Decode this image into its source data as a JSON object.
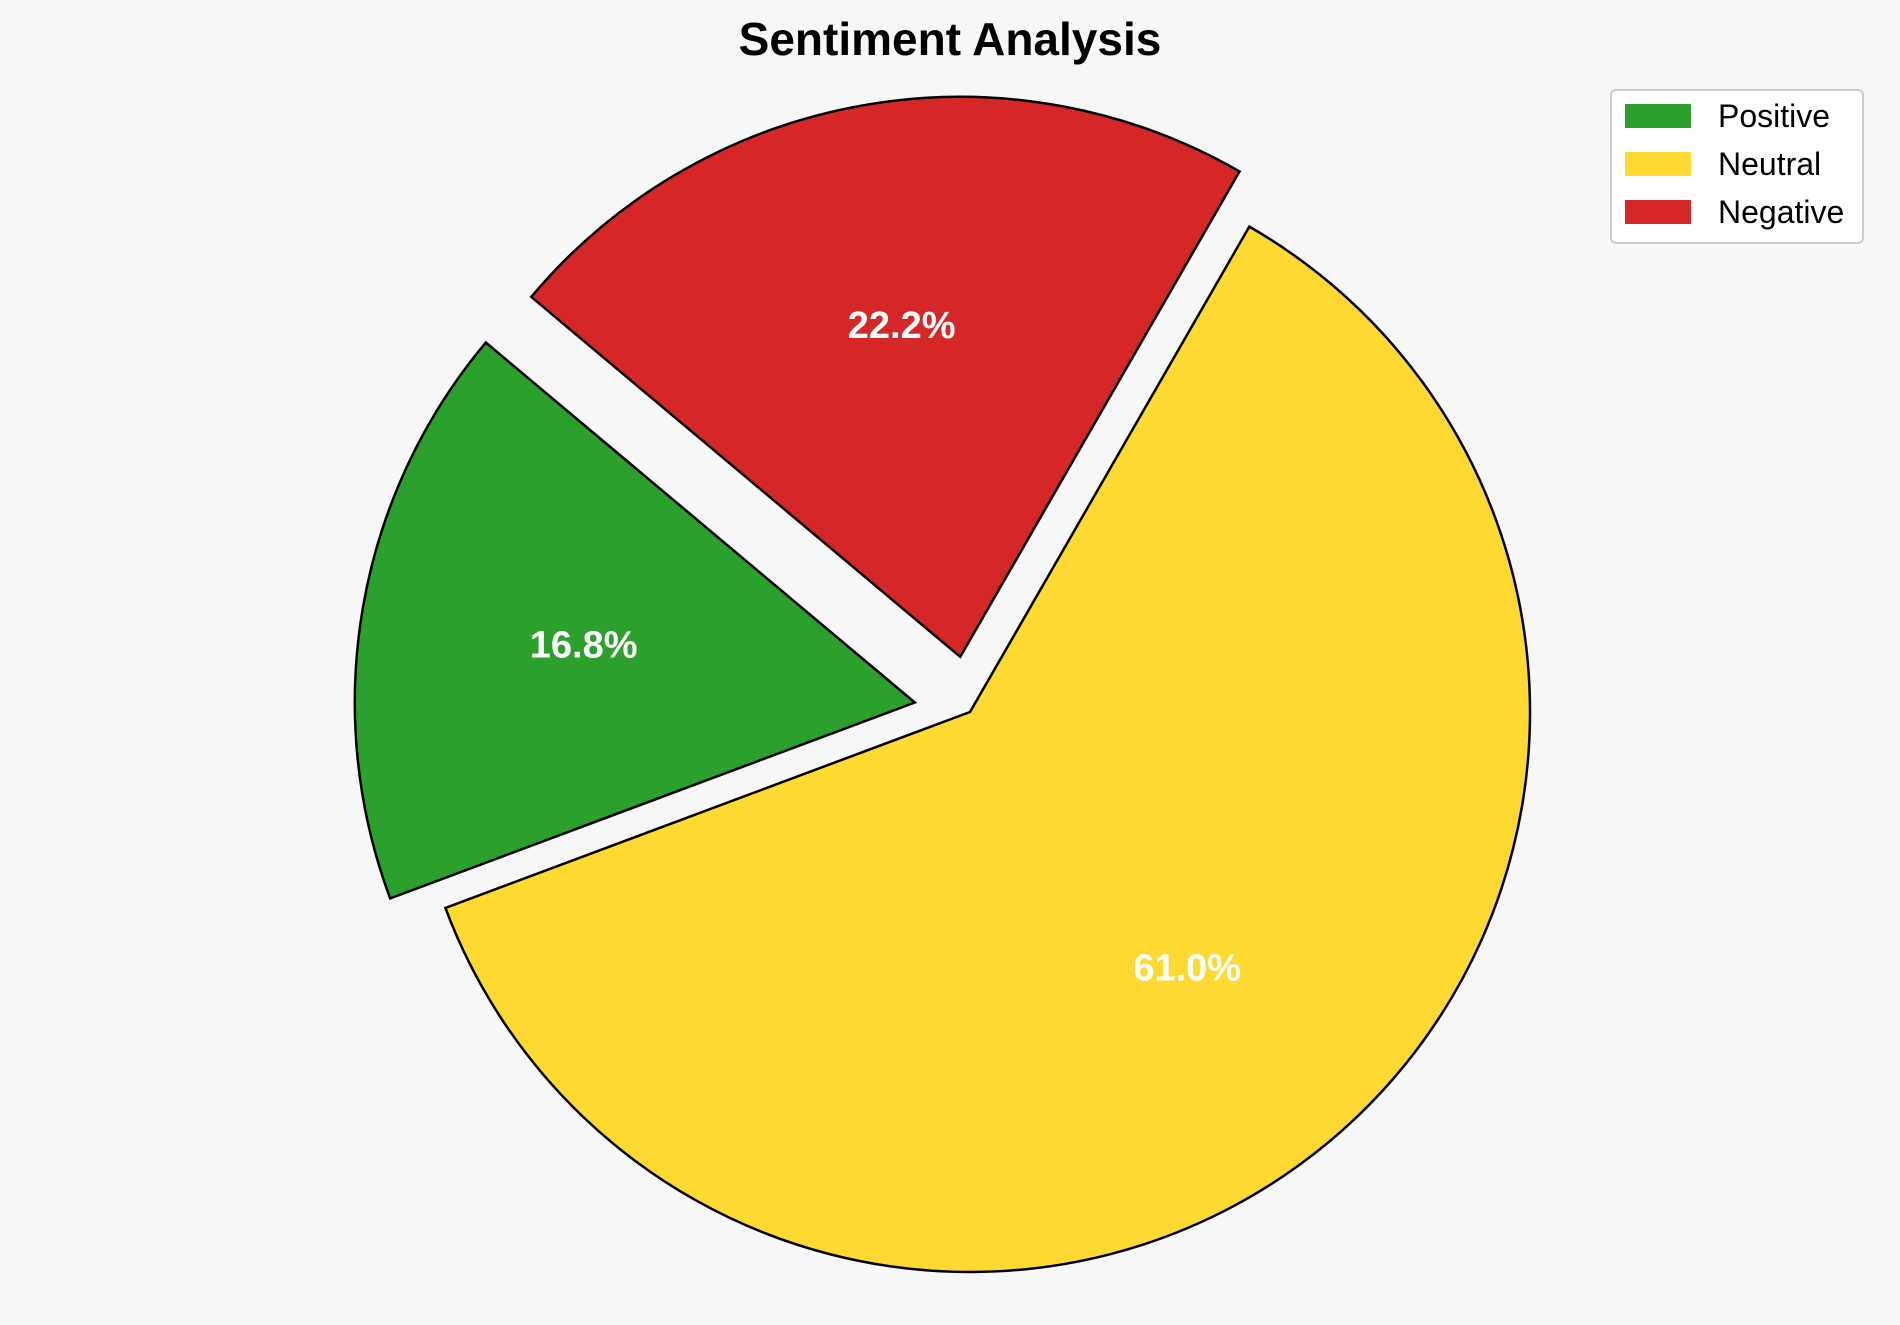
{
  "chart_data": {
    "type": "pie",
    "title": "Sentiment Analysis",
    "categories": [
      "Positive",
      "Neutral",
      "Negative"
    ],
    "values": [
      16.8,
      61.0,
      22.2
    ],
    "labels": [
      "16.8%",
      "61.0%",
      "22.2%"
    ],
    "colors": [
      "#2ca02c",
      "#fdd931",
      "#d62728"
    ],
    "exploded": [
      true,
      false,
      true
    ],
    "direction": "counterclockwise",
    "legend_position": "top-right"
  }
}
